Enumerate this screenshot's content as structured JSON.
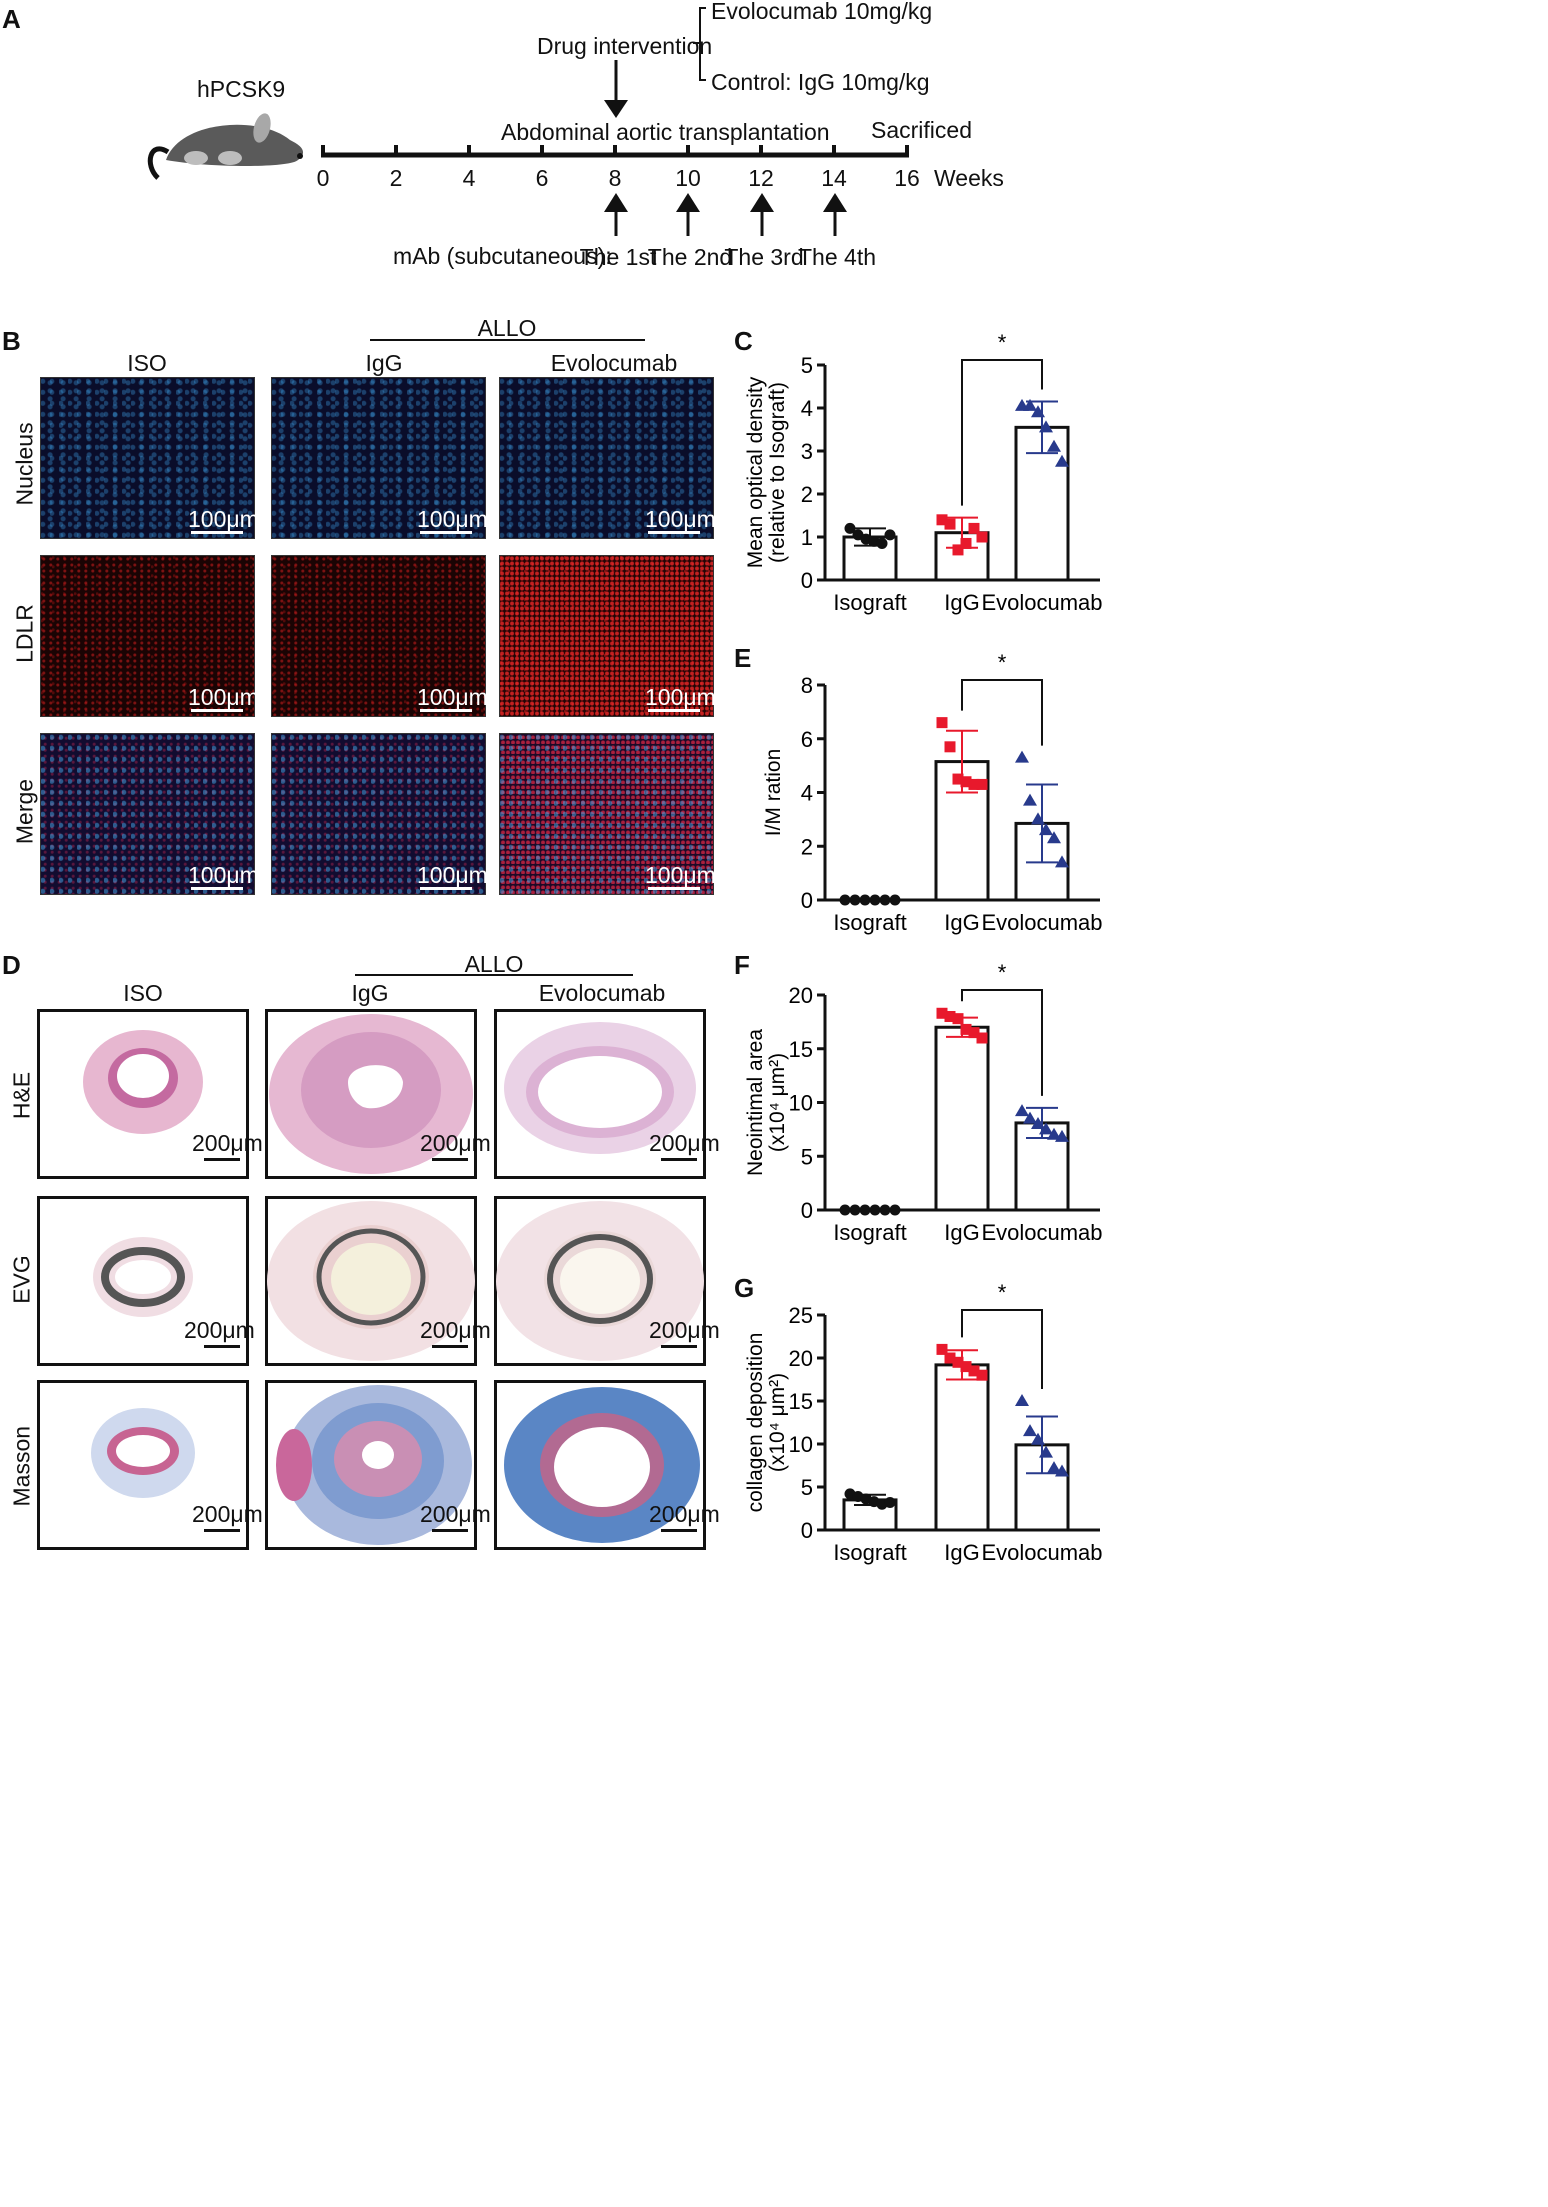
{
  "panels": {
    "A": "A",
    "B": "B",
    "C": "C",
    "D": "D",
    "E": "E",
    "F": "F",
    "G": "G"
  },
  "panelA": {
    "mouse_label": "hPCSK9",
    "drug_label": "Drug intervention",
    "branch_top": "Evolocumab 10mg/kg",
    "branch_bottom": "Control: IgG 10mg/kg",
    "surgery_label": "Abdominal aortic transplantation",
    "sacrificed_label": "Sacrificed",
    "week_ticks": [
      "0",
      "2",
      "4",
      "6",
      "8",
      "10",
      "12",
      "14",
      "16"
    ],
    "weeks_unit": "Weeks",
    "mab_label": "mAb (subcutaneous):",
    "doses": [
      "The 1st",
      "The 2nd",
      "The 3rd",
      "The 4th"
    ],
    "colors": {
      "mouse_body": "#5a5a5a",
      "mouse_spots": "#bdbdbd"
    }
  },
  "panelB": {
    "group_header": "ALLO",
    "columns": [
      "ISO",
      "IgG",
      "Evolocumab"
    ],
    "rows": [
      "Nucleus",
      "LDLR",
      "Merge"
    ],
    "scale": "100μm"
  },
  "panelD": {
    "group_header": "ALLO",
    "columns": [
      "ISO",
      "IgG",
      "Evolocumab"
    ],
    "rows": [
      "H&E",
      "EVG",
      "Masson"
    ],
    "scale": "200μm"
  },
  "chart_data": [
    {
      "id": "C",
      "type": "bar",
      "ylabel_lines": [
        "Mean optical density",
        "(relative to Isograft)"
      ],
      "categories": [
        "Isograft",
        "IgG",
        "Evolocumab"
      ],
      "values": [
        1.0,
        1.1,
        3.55
      ],
      "sd": [
        0.2,
        0.35,
        0.6
      ],
      "points": [
        [
          1.2,
          1.05,
          0.95,
          0.9,
          0.85,
          1.05
        ],
        [
          1.4,
          1.3,
          0.7,
          0.85,
          1.2,
          1.0
        ],
        [
          4.05,
          4.05,
          3.9,
          3.55,
          3.1,
          2.75
        ]
      ],
      "ylim": [
        0,
        5
      ],
      "yticks": [
        "0",
        "1",
        "2",
        "3",
        "4",
        "5"
      ],
      "significance": {
        "from": "IgG",
        "to": "Evolocumab",
        "label": "*"
      },
      "colors": [
        "#111111",
        "#e8192c",
        "#283a8c"
      ],
      "markers": [
        "circle",
        "square",
        "triangle"
      ]
    },
    {
      "id": "E",
      "type": "bar",
      "ylabel_lines": [
        "I/M ration"
      ],
      "categories": [
        "Isograft",
        "IgG",
        "Evolocumab"
      ],
      "values": [
        0,
        5.15,
        2.85
      ],
      "sd": [
        0,
        1.15,
        1.45
      ],
      "points": [
        [
          0,
          0,
          0,
          0,
          0,
          0
        ],
        [
          6.6,
          5.7,
          4.5,
          4.4,
          4.3,
          4.3
        ],
        [
          5.3,
          3.7,
          3.0,
          2.6,
          2.3,
          1.4
        ]
      ],
      "ylim": [
        0,
        8
      ],
      "yticks": [
        "0",
        "2",
        "4",
        "6",
        "8"
      ],
      "significance": {
        "from": "IgG",
        "to": "Evolocumab",
        "label": "*"
      },
      "colors": [
        "#111111",
        "#e8192c",
        "#283a8c"
      ],
      "markers": [
        "circle",
        "square",
        "triangle"
      ]
    },
    {
      "id": "F",
      "type": "bar",
      "ylabel_lines": [
        "Neointimal area",
        "(x10⁴ μm²)"
      ],
      "categories": [
        "Isograft",
        "IgG",
        "Evolocumab"
      ],
      "values": [
        0,
        17.0,
        8.1
      ],
      "sd": [
        0,
        0.9,
        1.4
      ],
      "points": [
        [
          0,
          0,
          0,
          0,
          0,
          0
        ],
        [
          18.3,
          18.0,
          17.8,
          16.8,
          16.5,
          16.0
        ],
        [
          9.2,
          8.5,
          8.0,
          7.5,
          7.0,
          6.8
        ]
      ],
      "ylim": [
        0,
        20
      ],
      "yticks": [
        "0",
        "5",
        "10",
        "15",
        "20"
      ],
      "significance": {
        "from": "IgG",
        "to": "Evolocumab",
        "label": "*"
      },
      "colors": [
        "#111111",
        "#e8192c",
        "#283a8c"
      ],
      "markers": [
        "circle",
        "square",
        "triangle"
      ]
    },
    {
      "id": "G",
      "type": "bar",
      "ylabel_lines": [
        "collagen deposition",
        "(x10⁴ μm²)"
      ],
      "categories": [
        "Isograft",
        "IgG",
        "Evolocumab"
      ],
      "values": [
        3.5,
        19.2,
        9.9
      ],
      "sd": [
        0.6,
        1.7,
        3.3
      ],
      "points": [
        [
          4.2,
          3.9,
          3.6,
          3.3,
          3.0,
          3.2
        ],
        [
          21.0,
          20.0,
          19.5,
          19.0,
          18.5,
          18.0
        ],
        [
          15.0,
          11.5,
          10.5,
          9.0,
          7.2,
          6.8
        ]
      ],
      "ylim": [
        0,
        25
      ],
      "yticks": [
        "0",
        "5",
        "10",
        "15",
        "20",
        "25"
      ],
      "significance": {
        "from": "IgG",
        "to": "Evolocumab",
        "label": "*"
      },
      "colors": [
        "#111111",
        "#e8192c",
        "#283a8c"
      ],
      "markers": [
        "circle",
        "square",
        "triangle"
      ]
    }
  ]
}
